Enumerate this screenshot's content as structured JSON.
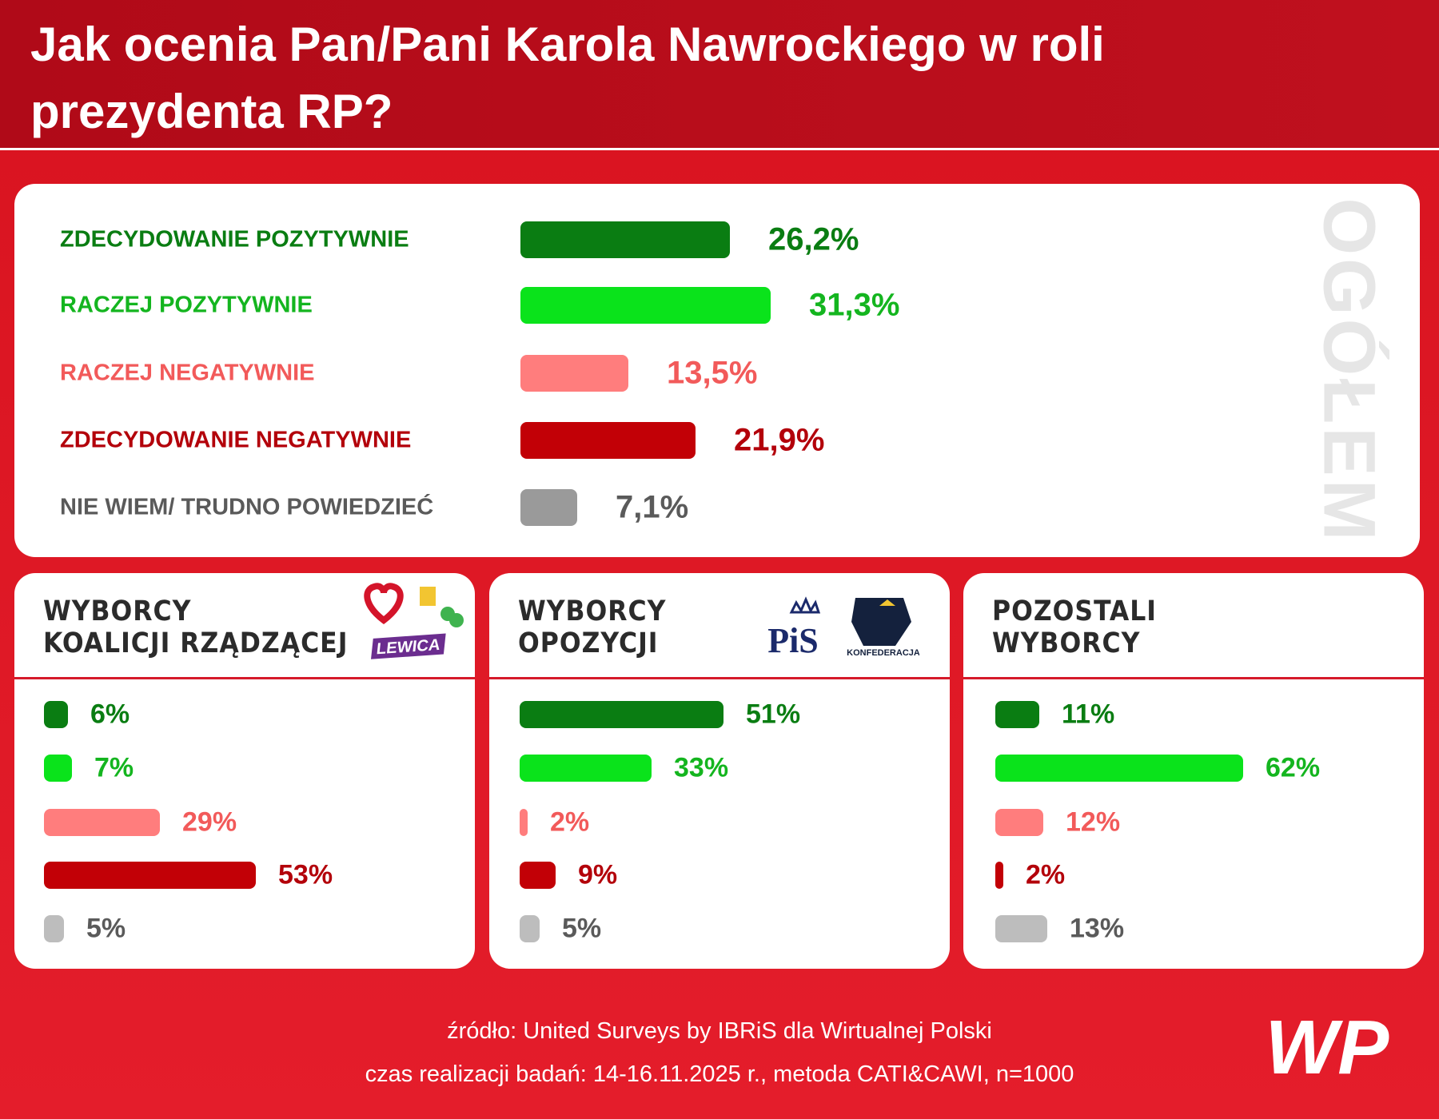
{
  "title": "Jak ocenia Pan/Pani Karola Nawrockiego w roli prezydenta RP?",
  "chart_data": [
    {
      "type": "bar",
      "orientation": "horizontal",
      "side_label": "OGÓŁEM",
      "categories": [
        "ZDECYDOWANIE POZYTYWNIE",
        "RACZEJ POZYTYWNIE",
        "RACZEJ NEGATYWNIE",
        "ZDECYDOWANIE NEGATYWNIE",
        "NIE WIEM/ TRUDNO POWIEDZIEĆ"
      ],
      "values": [
        26.2,
        31.3,
        13.5,
        21.9,
        7.1
      ],
      "value_labels": [
        "26,2%",
        "31,3%",
        "13,5%",
        "21,9%",
        "7,1%"
      ],
      "colors": [
        "#0a7d12",
        "#0ae31b",
        "#ff7d7d",
        "#c20006",
        "#9a9a9a"
      ],
      "text_colors": [
        "#0a7d12",
        "#14b51f",
        "#f25a5a",
        "#b3000a",
        "#5a5a5a"
      ]
    },
    {
      "type": "bar",
      "orientation": "horizontal",
      "title": "WYBORCY\nKOALICJI RZĄDZĄCEJ",
      "categories": [
        null,
        null,
        null,
        null,
        null
      ],
      "values": [
        6,
        7,
        29,
        53,
        5
      ],
      "value_labels": [
        "6%",
        "7%",
        "29%",
        "53%",
        "5%"
      ],
      "colors": [
        "#0a7d12",
        "#0ae31b",
        "#ff7d7d",
        "#c20006",
        "#bdbdbd"
      ],
      "text_colors": [
        "#0a7d12",
        "#14b51f",
        "#f25a5a",
        "#b3000a",
        "#5a5a5a"
      ]
    },
    {
      "type": "bar",
      "orientation": "horizontal",
      "title": "WYBORCY\nOPOZYCJI",
      "categories": [
        null,
        null,
        null,
        null,
        null
      ],
      "values": [
        51,
        33,
        2,
        9,
        5
      ],
      "value_labels": [
        "51%",
        "33%",
        "2%",
        "9%",
        "5%"
      ],
      "colors": [
        "#0a7d12",
        "#0ae31b",
        "#ff7d7d",
        "#c20006",
        "#bdbdbd"
      ],
      "text_colors": [
        "#0a7d12",
        "#14b51f",
        "#f25a5a",
        "#b3000a",
        "#5a5a5a"
      ]
    },
    {
      "type": "bar",
      "orientation": "horizontal",
      "title": "POZOSTALI\nWYBORCY",
      "categories": [
        null,
        null,
        null,
        null,
        null
      ],
      "values": [
        11,
        62,
        12,
        2,
        13
      ],
      "value_labels": [
        "11%",
        "62%",
        "12%",
        "2%",
        "13%"
      ],
      "colors": [
        "#0a7d12",
        "#0ae31b",
        "#ff7d7d",
        "#c20006",
        "#bdbdbd"
      ],
      "text_colors": [
        "#0a7d12",
        "#14b51f",
        "#f25a5a",
        "#b3000a",
        "#5a5a5a"
      ]
    }
  ],
  "logos": {
    "lewica": "LEWICA",
    "pis": "PiS",
    "konfederacja": "KONFEDERACJA",
    "wp": "WP"
  },
  "footer": {
    "source": "źródło: United Surveys by IBRiS dla Wirtualnej Polski",
    "details": "czas realizacji badań: 14-16.11.2025 r., metoda CATI&CAWI, n=1000"
  }
}
